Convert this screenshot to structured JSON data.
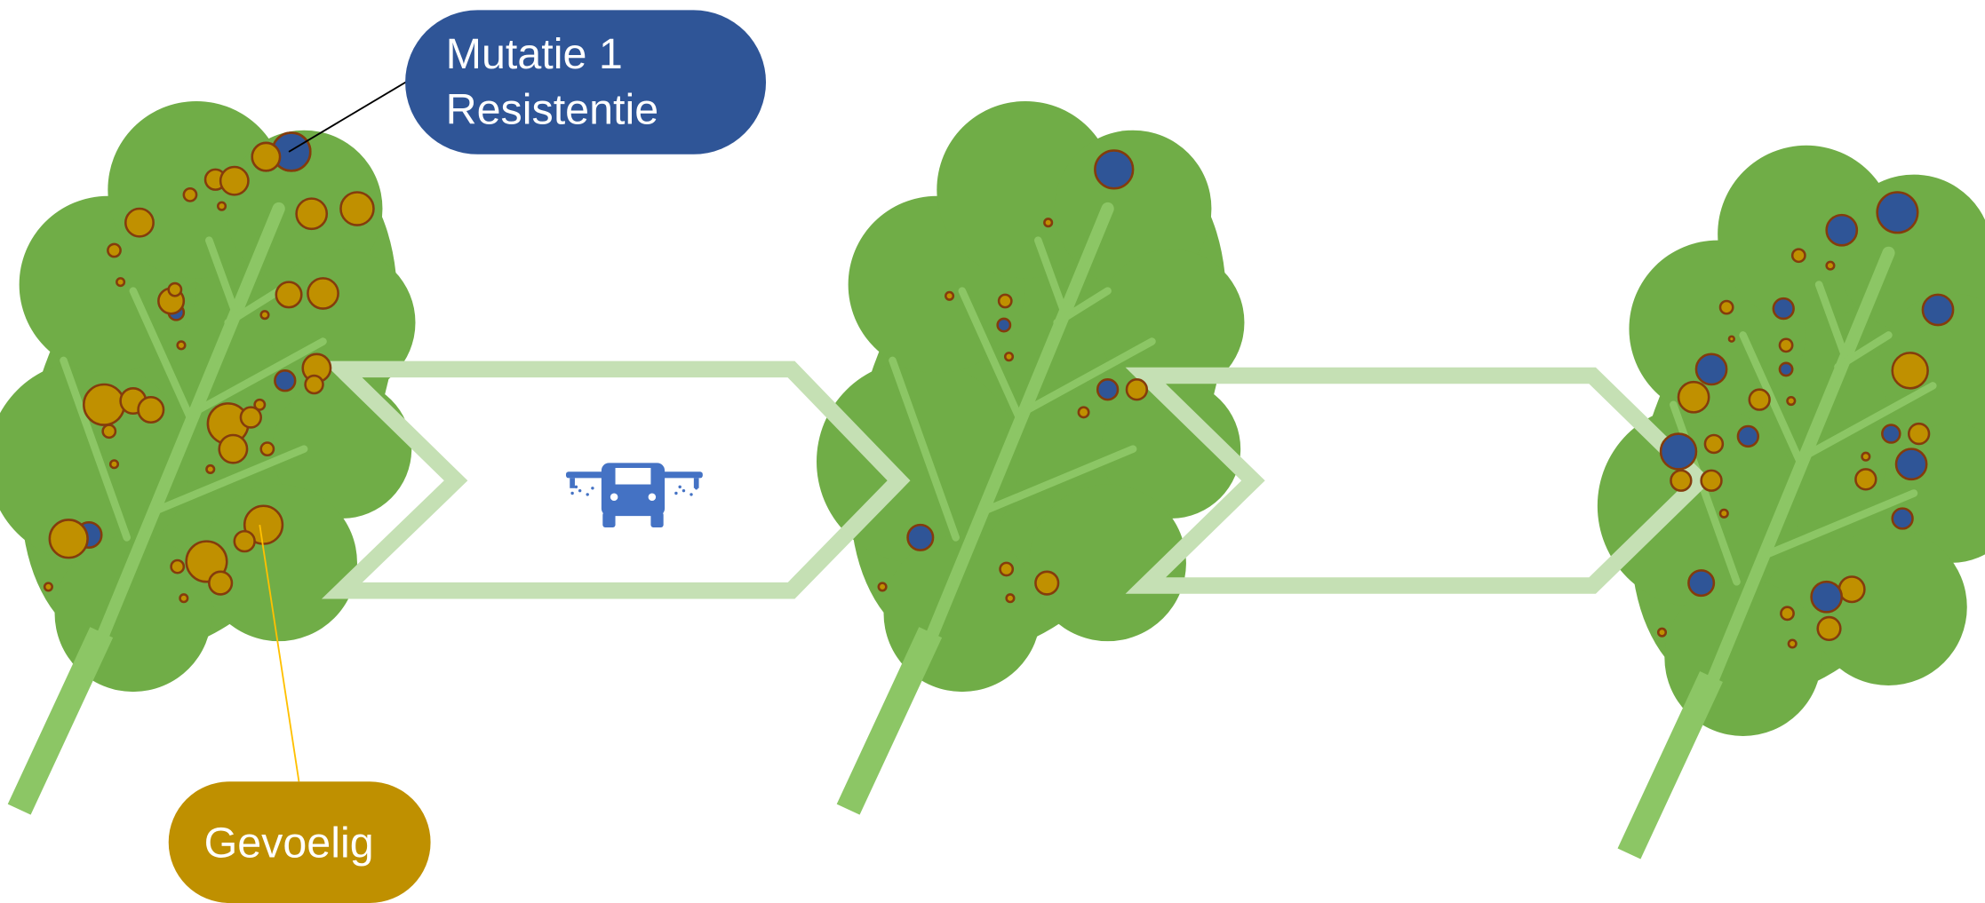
{
  "callouts": {
    "mutation": {
      "line1": "Mutatie 1",
      "line2": "Resistentie"
    },
    "susceptible": {
      "label": "Gevoelig"
    }
  }
}
